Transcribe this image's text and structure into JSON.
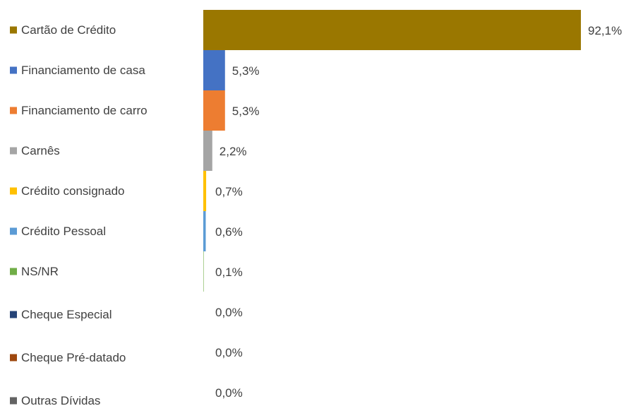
{
  "chart_data": {
    "type": "bar",
    "orientation": "horizontal",
    "categories": [
      "Cartão de Crédito",
      "Financiamento de casa",
      "Financiamento de carro",
      "Carnês",
      "Crédito consignado",
      "Crédito Pessoal",
      "NS/NR",
      "Cheque Especial",
      "Cheque Pré-datado",
      "Outras Dívidas"
    ],
    "values": [
      92.1,
      5.3,
      5.3,
      2.2,
      0.7,
      0.6,
      0.1,
      0.0,
      0.0,
      0.0
    ],
    "value_labels": [
      "92,1%",
      "5,3%",
      "5,3%",
      "2,2%",
      "0,7%",
      "0,6%",
      "0,1%",
      "0,0%",
      "0,0%",
      "0,0%"
    ],
    "colors": [
      "#9a7700",
      "#4472c4",
      "#ed7d31",
      "#a5a5a5",
      "#ffc000",
      "#5b9bd5",
      "#70ad47",
      "#264478",
      "#9e480e",
      "#636363"
    ],
    "legend": "left"
  }
}
